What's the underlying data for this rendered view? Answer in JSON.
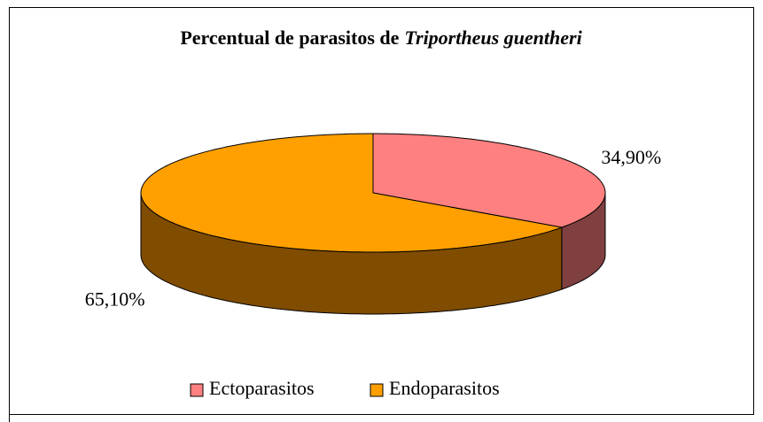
{
  "chart_data": {
    "type": "pie3d",
    "title": [
      "Percentual de parasitos de",
      "Triportheus guentheri"
    ],
    "categories": [
      "Ectoparasitos",
      "Endoparasitos"
    ],
    "values": [
      34.9,
      65.1
    ],
    "value_labels": [
      "34,90%",
      "65,10%"
    ],
    "colors": [
      "#FF8080",
      "#FFA000"
    ],
    "side_colors": [
      "#804040",
      "#804C00"
    ],
    "legend": "bottom"
  }
}
